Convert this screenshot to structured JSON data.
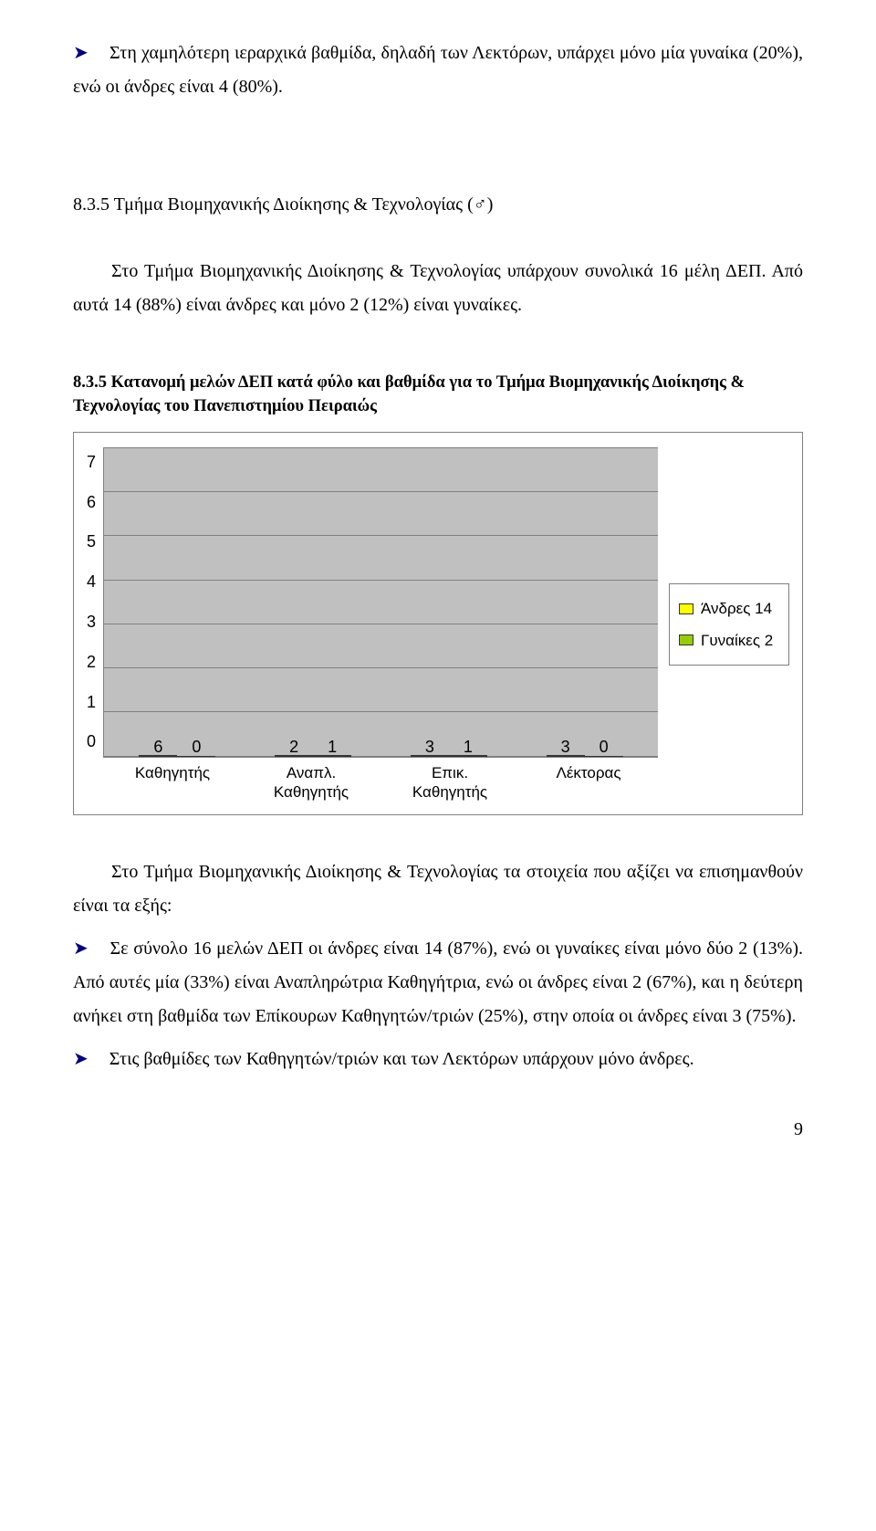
{
  "p1_lead": "Στη χαμηλότερη ιεραρχικά βαθμίδα, δηλαδή των Λεκτόρων, υπάρχει μόνο μία γυναίκα (20%), ενώ οι άνδρες είναι 4 (80%).",
  "section_heading": "8.3.5 Τμήμα Βιομηχανικής Διοίκησης & Τεχνολογίας (♂)",
  "p2": "Στο Τμήμα Βιομηχανικής Διοίκησης & Τεχνολογίας υπάρχουν συνολικά 16 μέλη ΔΕΠ. Από αυτά 14 (88%) είναι άνδρες και μόνο 2 (12%) είναι γυναίκες.",
  "caption": "8.3.5 Κατανομή μελών ΔΕΠ κατά φύλο και βαθμίδα για το Τμήμα Βιομηχανικής Διοίκησης & Τεχνολογίας του Πανεπιστημίου Πειραιώς",
  "chart": {
    "type": "bar",
    "y_ticks": [
      "7",
      "6",
      "5",
      "4",
      "3",
      "2",
      "1",
      "0"
    ],
    "y_max": 7,
    "plot_bg": "#c0c0c0",
    "grid_color": "#808080",
    "categories": [
      {
        "label_line1": "Καθηγητής",
        "label_line2": ""
      },
      {
        "label_line1": "Αναπλ.",
        "label_line2": "Καθηγητής"
      },
      {
        "label_line1": "Επικ.",
        "label_line2": "Καθηγητής"
      },
      {
        "label_line1": "Λέκτορας",
        "label_line2": ""
      }
    ],
    "series": [
      {
        "name": "Άνδρες 14",
        "color": "#ffff00",
        "values": [
          6,
          2,
          3,
          3
        ]
      },
      {
        "name": "Γυναίκες 2",
        "color": "#99cc00",
        "values": [
          0,
          1,
          1,
          0
        ]
      }
    ],
    "bar_border": "#333333",
    "font_family": "Arial"
  },
  "p3": "Στο Τμήμα Βιομηχανικής Διοίκησης & Τεχνολογίας τα στοιχεία που αξίζει να επισημανθούν είναι τα εξής:",
  "b1": "Σε σύνολο 16 μελών ΔΕΠ οι άνδρες είναι 14 (87%), ενώ οι γυναίκες είναι μόνο δύο 2 (13%). Από αυτές μία (33%) είναι Αναπληρώτρια Καθηγήτρια, ενώ οι άνδρες είναι 2 (67%), και η δεύτερη ανήκει στη βαθμίδα των Επίκουρων Καθηγητών/τριών (25%), στην οποία οι άνδρες είναι 3 (75%).",
  "b2": "Στις βαθμίδες των Καθηγητών/τριών και των Λεκτόρων υπάρχουν μόνο άνδρες.",
  "page_number": "9"
}
